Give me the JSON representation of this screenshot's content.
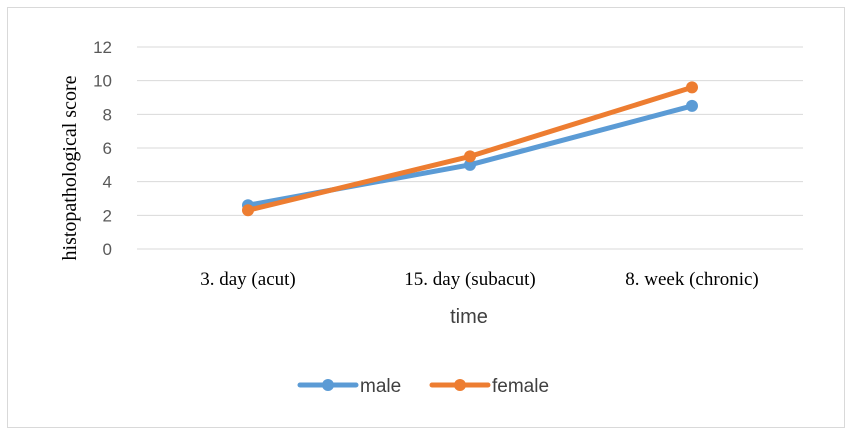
{
  "chart_data": {
    "type": "line",
    "title": "",
    "xlabel": "time",
    "ylabel": "histopathological score",
    "categories": [
      "3. day (acut)",
      "15. day (subacut)",
      "8. week (chronic)"
    ],
    "ylim": [
      0,
      12
    ],
    "yticks": [
      0,
      2,
      4,
      6,
      8,
      10,
      12
    ],
    "grid": true,
    "legend_position": "bottom",
    "series": [
      {
        "name": "male",
        "color": "#5b9bd5",
        "values": [
          2.6,
          5.0,
          8.5
        ]
      },
      {
        "name": "female",
        "color": "#ed7d31",
        "values": [
          2.3,
          5.5,
          9.6
        ]
      }
    ]
  }
}
